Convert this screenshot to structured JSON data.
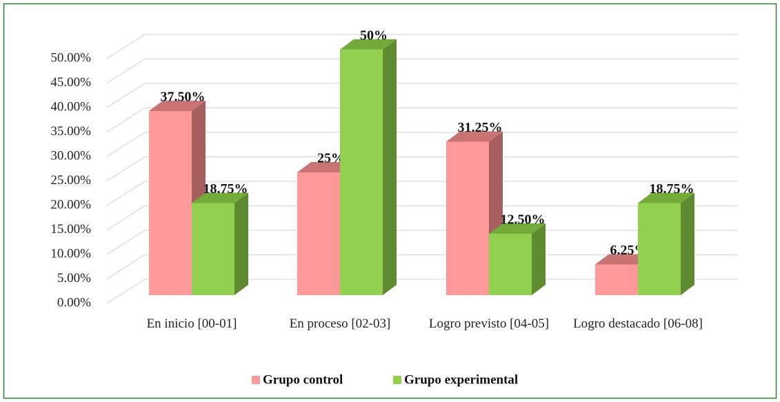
{
  "chart_data": {
    "type": "bar3d",
    "categories": [
      "En inicio [00-01]",
      "En proceso [02-03]",
      "Logro previsto [04-05]",
      "Logro destacado [06-08]"
    ],
    "series": [
      {
        "name": "Grupo control",
        "color": "#ff9999",
        "values": [
          37.5,
          25,
          31.25,
          6.25
        ],
        "value_labels": [
          "37.50%",
          "25%",
          "31.25%",
          "6.25%"
        ]
      },
      {
        "name": "Grupo experimental",
        "color": "#92d050",
        "values": [
          18.75,
          50,
          12.5,
          18.75
        ],
        "value_labels": [
          "18.75%",
          "50%",
          "12.50%",
          "18.75%"
        ]
      }
    ],
    "ylim": [
      0,
      50
    ],
    "yticks": [
      {
        "value": 0,
        "label": "0.00%"
      },
      {
        "value": 5,
        "label": "5.00%"
      },
      {
        "value": 10,
        "label": "10.00%"
      },
      {
        "value": 15,
        "label": "15.00%"
      },
      {
        "value": 20,
        "label": "20.00%"
      },
      {
        "value": 25,
        "label": "25.00%"
      },
      {
        "value": 30,
        "label": "30.00%"
      },
      {
        "value": 35,
        "label": "35.00%"
      },
      {
        "value": 40,
        "label": "40.00%"
      },
      {
        "value": 45,
        "label": "45.00%"
      },
      {
        "value": 50,
        "label": "50.00%"
      }
    ],
    "grid": true,
    "legend": "bottom"
  }
}
